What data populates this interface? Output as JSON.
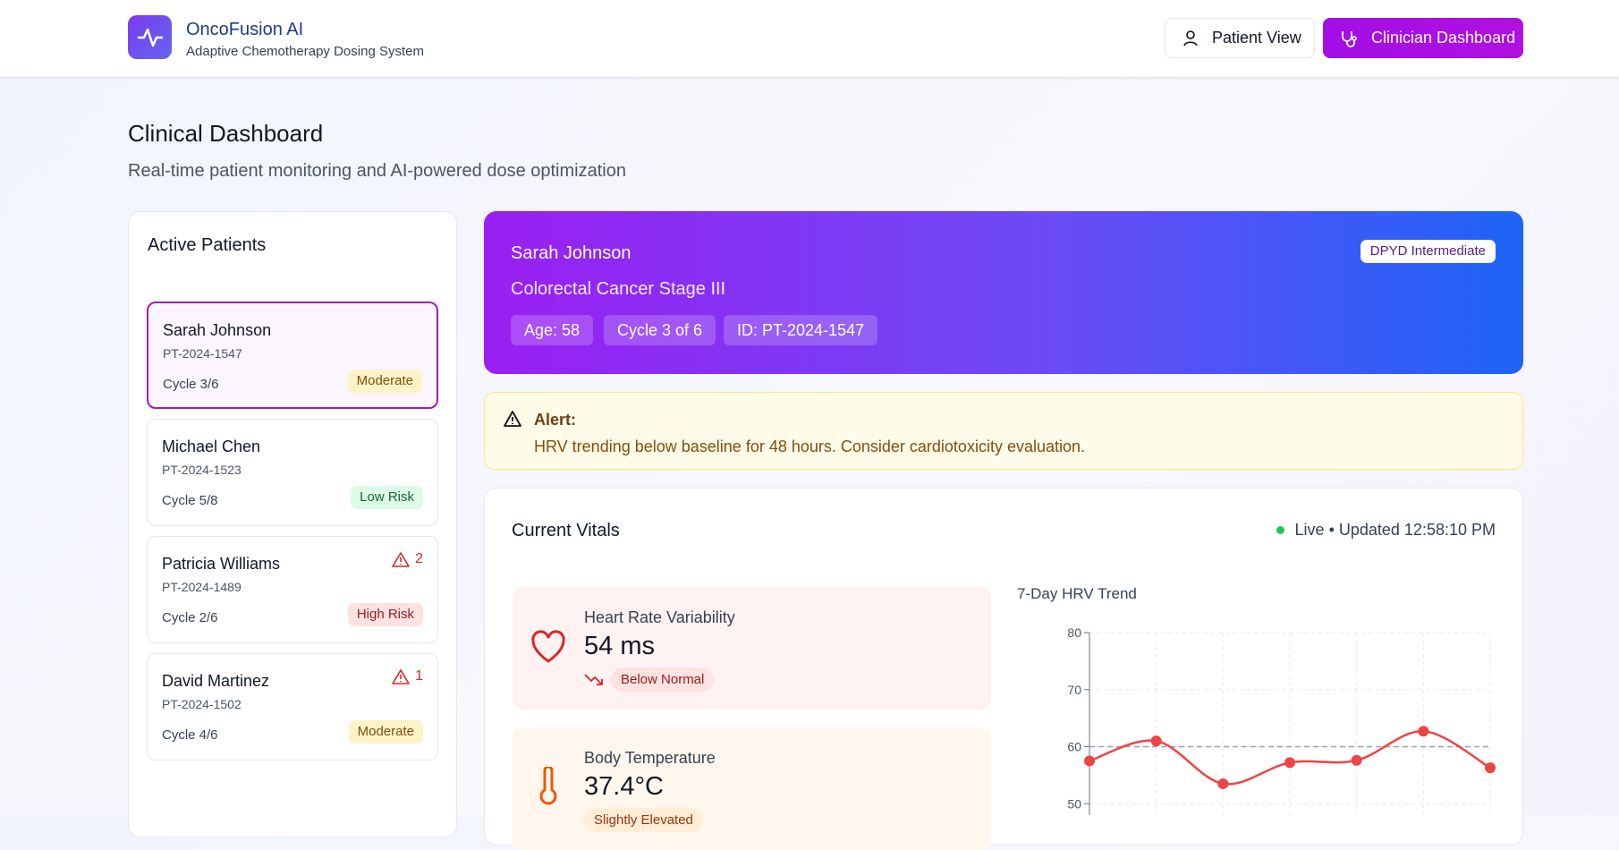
{
  "header": {
    "title": "OncoFusion AI",
    "subtitle": "Adaptive Chemotherapy Dosing System",
    "buttons": [
      "Patient View",
      "Clinician Dashboard"
    ]
  },
  "page": {
    "title": "Clinical Dashboard",
    "subtitle": "Real-time patient monitoring and AI-powered dose optimization"
  },
  "patients": {
    "title": "Active Patients",
    "items": [
      {
        "name": "Sarah Johnson",
        "id": "PT-2024-1547",
        "cycle": "Cycle 3/6",
        "risk": "Moderate"
      },
      {
        "name": "Michael Chen",
        "id": "PT-2024-1523",
        "cycle": "Cycle 5/8",
        "risk": "Low Risk"
      },
      {
        "name": "Patricia Williams",
        "id": "PT-2024-1489",
        "cycle": "Cycle 2/6",
        "risk": "High Risk",
        "alerts": "2"
      },
      {
        "name": "David Martinez",
        "id": "PT-2024-1502",
        "cycle": "Cycle 4/6",
        "risk": "Moderate",
        "alerts": "1"
      }
    ]
  },
  "banner": {
    "name": "Sarah Johnson",
    "diagnosis": "Colorectal Cancer Stage III",
    "badge": "DPYD Intermediate",
    "chips": [
      "Age: 58",
      "Cycle 3 of 6",
      "ID: PT-2024-1547"
    ]
  },
  "alert": {
    "title": "Alert:",
    "text": "HRV trending below baseline for 48 hours. Consider cardiotoxicity evaluation."
  },
  "vitals": {
    "title": "Current Vitals",
    "status": "Live • Updated 12:58:10 PM",
    "cards": [
      {
        "label": "Heart Rate Variability",
        "value": "54 ms",
        "status": "Below Normal"
      },
      {
        "label": "Body Temperature",
        "value": "37.4°C",
        "status": "Slightly Elevated"
      }
    ]
  },
  "chart_data": {
    "type": "line",
    "title": "7-Day HRV Trend",
    "series": [
      {
        "color": "#ef4444",
        "values": [
          57.5,
          61,
          53.5,
          57.2,
          57.6,
          62.7,
          56.3
        ]
      }
    ],
    "baseline": 60,
    "ylim": [
      40,
      80
    ],
    "yticks": [
      50,
      60,
      70,
      80
    ],
    "grid": true
  }
}
